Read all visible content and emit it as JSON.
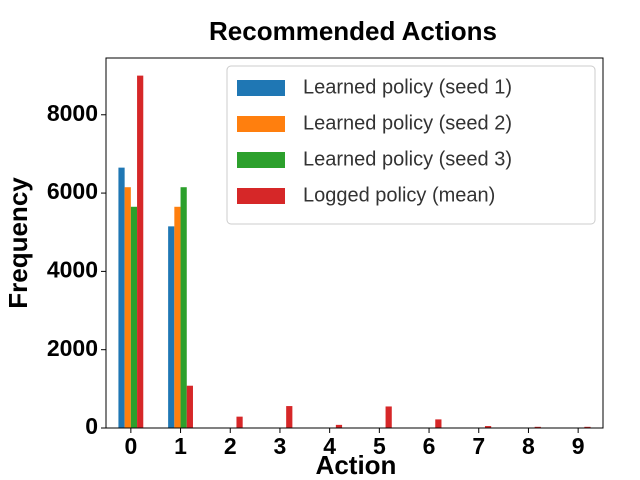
{
  "chart_data": {
    "type": "bar",
    "title": "Recommended Actions",
    "xlabel": "Action",
    "ylabel": "Frequency",
    "categories": [
      "0",
      "1",
      "2",
      "3",
      "4",
      "5",
      "6",
      "7",
      "8",
      "9"
    ],
    "series": [
      {
        "name": "Learned policy (seed 1)",
        "color": "#1f77b4",
        "values": [
          6650,
          5150,
          0,
          0,
          0,
          0,
          0,
          0,
          0,
          0
        ]
      },
      {
        "name": "Learned policy (seed 2)",
        "color": "#ff7f0e",
        "values": [
          6150,
          5650,
          0,
          0,
          0,
          0,
          0,
          0,
          0,
          0
        ]
      },
      {
        "name": "Learned policy (seed 3)",
        "color": "#2ca02c",
        "values": [
          5650,
          6150,
          0,
          0,
          0,
          0,
          0,
          0,
          0,
          0
        ]
      },
      {
        "name": "Logged policy (mean)",
        "color": "#d62728",
        "values": [
          9000,
          1080,
          290,
          560,
          80,
          550,
          220,
          50,
          30,
          30
        ]
      }
    ],
    "ylim": [
      0,
      9450
    ],
    "yticks": [
      0,
      2000,
      4000,
      6000,
      8000
    ],
    "legend": "upper right"
  }
}
